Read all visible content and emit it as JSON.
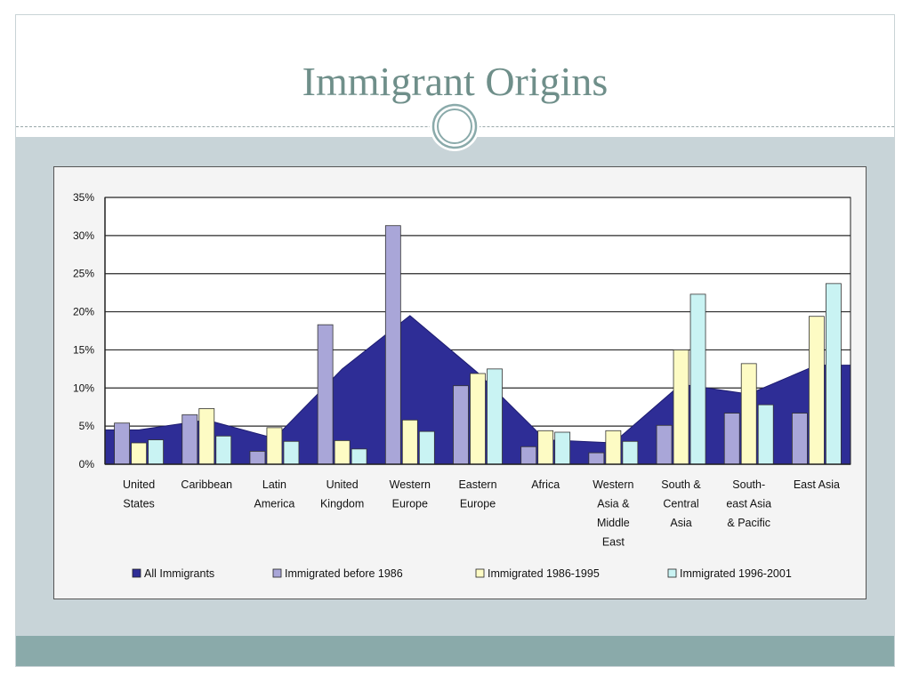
{
  "slide": {
    "title": "Immigrant Origins"
  },
  "colors": {
    "title": "#6f8f8a",
    "content_bg": "#c8d4d8",
    "footer": "#8aaaaa",
    "area_fill": "#2e2d96",
    "bar_before_1986": "#a9a6d8",
    "bar_1986_1995": "#fdfbc4",
    "bar_1996_2001": "#c9f3f3"
  },
  "chart_data": {
    "type": "bar",
    "title": "",
    "xlabel": "",
    "ylabel": "",
    "ylim": [
      0,
      35
    ],
    "y_ticks": [
      "0%",
      "5%",
      "10%",
      "15%",
      "20%",
      "25%",
      "30%",
      "35%"
    ],
    "grid": true,
    "legend_position": "bottom",
    "categories": [
      [
        "United",
        "States"
      ],
      [
        "Caribbean"
      ],
      [
        "Latin",
        "America"
      ],
      [
        "United",
        "Kingdom"
      ],
      [
        "Western",
        "Europe"
      ],
      [
        "Eastern",
        "Europe"
      ],
      [
        "Africa"
      ],
      [
        "Western",
        "Asia &",
        "Middle",
        "East"
      ],
      [
        "South &",
        "Central",
        "Asia"
      ],
      [
        "South-",
        "east Asia",
        "& Pacific"
      ],
      [
        "East Asia"
      ]
    ],
    "area_series": {
      "name": "All Immigrants",
      "type": "area",
      "values": [
        4.5,
        5.8,
        3.4,
        12.5,
        19.5,
        12.0,
        3.2,
        2.8,
        10.5,
        9.2,
        13.0
      ]
    },
    "series": [
      {
        "name": "Immigrated before 1986",
        "values": [
          5.4,
          6.5,
          1.7,
          18.3,
          31.3,
          10.3,
          2.3,
          1.5,
          5.1,
          6.7,
          6.7
        ]
      },
      {
        "name": "Immigrated 1986-1995",
        "values": [
          2.8,
          7.3,
          4.8,
          3.1,
          5.8,
          11.9,
          4.4,
          4.4,
          15.0,
          13.2,
          19.4
        ]
      },
      {
        "name": "Immigrated 1996-2001",
        "values": [
          3.2,
          3.7,
          3.0,
          2.0,
          4.3,
          12.5,
          4.2,
          3.0,
          22.3,
          7.8,
          23.7
        ]
      }
    ]
  }
}
